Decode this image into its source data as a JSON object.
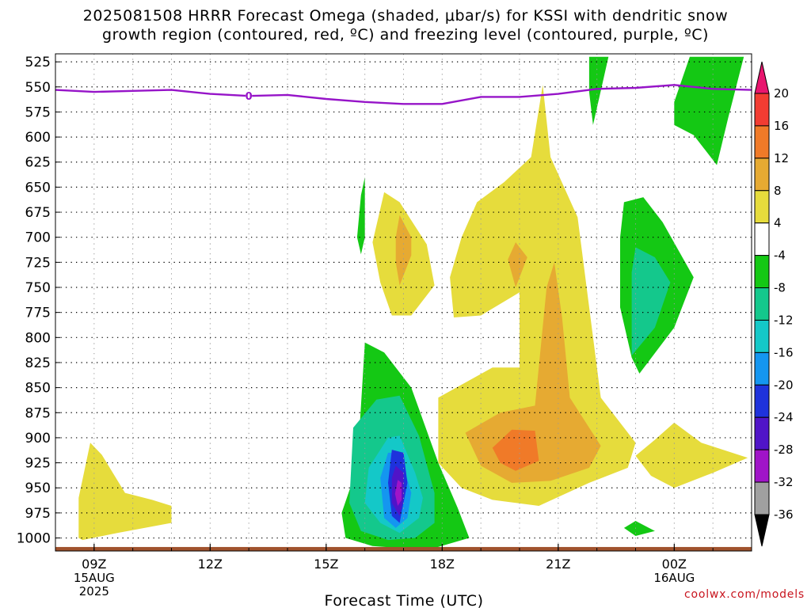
{
  "title": {
    "line1": "2025081508 HRRR Forecast Omega (shaded, μbar/s) for KSSI with dendritic snow",
    "line2": "growth region (contoured, red, ºC) and freezing level (contoured, purple, ºC)"
  },
  "credit": "coolwx.com/models",
  "chart_data": {
    "type": "time-height",
    "title": "2025081508 HRRR Forecast Omega (shaded, μbar/s) for KSSI with dendritic snow growth region (contoured, red, ºC) and freezing level (contoured, purple, ºC)",
    "xlabel": "Forecast Time (UTC)",
    "ylabel": "",
    "x_ticks": [
      {
        "label": "09Z",
        "sub": [
          "15AUG",
          "2025"
        ],
        "hour": 9
      },
      {
        "label": "12Z",
        "sub": [],
        "hour": 12
      },
      {
        "label": "15Z",
        "sub": [],
        "hour": 15
      },
      {
        "label": "18Z",
        "sub": [],
        "hour": 18
      },
      {
        "label": "21Z",
        "sub": [],
        "hour": 21
      },
      {
        "label": "00Z",
        "sub": [
          "16AUG"
        ],
        "hour": 24
      }
    ],
    "xlim_hours": [
      8,
      26
    ],
    "y_ticks": [
      "525",
      "550",
      "575",
      "600",
      "625",
      "650",
      "675",
      "700",
      "725",
      "750",
      "775",
      "800",
      "825",
      "850",
      "875",
      "900",
      "925",
      "950",
      "975",
      "1000"
    ],
    "ylim_hPa": [
      517,
      1013
    ],
    "grid": true,
    "colorbar": {
      "labels": [
        "20",
        "16",
        "12",
        "8",
        "4",
        "-4",
        "-8",
        "-12",
        "-16",
        "-20",
        "-24",
        "-28",
        "-32",
        "-36"
      ],
      "colors": [
        "#e8156e",
        "#f23c32",
        "#f07a28",
        "#e6aa32",
        "#e6dc3c",
        "#ffffff",
        "#14c814",
        "#14c88c",
        "#14c8c8",
        "#1496f0",
        "#1e32dc",
        "#5014c8",
        "#a014c8",
        "#a0a0a0",
        "#000000"
      ],
      "levels": [
        20,
        16,
        12,
        8,
        4,
        -4,
        -8,
        -12,
        -16,
        -20,
        -24,
        -28,
        -32,
        -36
      ]
    },
    "freezing_level": {
      "color": "#9614c8",
      "label": "0",
      "points": [
        [
          8.0,
          553
        ],
        [
          9.0,
          555
        ],
        [
          10.0,
          554
        ],
        [
          11.0,
          553
        ],
        [
          12.0,
          557
        ],
        [
          13.0,
          559
        ],
        [
          14.0,
          558
        ],
        [
          15.0,
          562
        ],
        [
          16.0,
          565
        ],
        [
          17.0,
          567
        ],
        [
          18.0,
          567
        ],
        [
          19.0,
          560
        ],
        [
          20.0,
          560
        ],
        [
          21.0,
          557
        ],
        [
          22.0,
          552
        ],
        [
          23.0,
          551
        ],
        [
          24.0,
          548
        ],
        [
          25.0,
          552
        ],
        [
          26.0,
          553
        ]
      ]
    },
    "omega_regions": [
      {
        "level": 4,
        "color": "#e6dc3c",
        "points": [
          [
            8.6,
            1000
          ],
          [
            8.6,
            960
          ],
          [
            8.9,
            905
          ],
          [
            9.2,
            917
          ],
          [
            9.8,
            955
          ],
          [
            10.5,
            962
          ],
          [
            11.0,
            968
          ],
          [
            11.0,
            985
          ],
          [
            10.3,
            990
          ],
          [
            9.6,
            995
          ],
          [
            8.7,
            1002
          ]
        ]
      },
      {
        "level": 4,
        "color": "#e6dc3c",
        "points": [
          [
            18.9,
            665
          ],
          [
            19.6,
            645
          ],
          [
            20.3,
            620
          ],
          [
            20.6,
            548
          ],
          [
            20.8,
            620
          ],
          [
            21.5,
            680
          ],
          [
            22.1,
            860
          ],
          [
            23.0,
            905
          ],
          [
            22.8,
            930
          ],
          [
            21.8,
            945
          ],
          [
            20.5,
            968
          ],
          [
            19.3,
            962
          ],
          [
            18.5,
            950
          ],
          [
            17.9,
            925
          ],
          [
            17.9,
            860
          ],
          [
            19.3,
            830
          ],
          [
            20.0,
            830
          ],
          [
            20.0,
            755
          ],
          [
            19.0,
            778
          ],
          [
            18.3,
            780
          ],
          [
            18.2,
            740
          ],
          [
            18.5,
            700
          ]
        ]
      },
      {
        "level": 4,
        "color": "#e6dc3c",
        "points": [
          [
            16.5,
            655
          ],
          [
            16.9,
            665
          ],
          [
            17.6,
            707
          ],
          [
            17.8,
            748
          ],
          [
            17.2,
            778
          ],
          [
            16.7,
            778
          ],
          [
            16.4,
            745
          ],
          [
            16.2,
            705
          ]
        ]
      },
      {
        "level": 4,
        "color": "#e6dc3c",
        "points": [
          [
            23.0,
            918
          ],
          [
            23.5,
            902
          ],
          [
            24.0,
            885
          ],
          [
            24.7,
            905
          ],
          [
            25.9,
            920
          ],
          [
            25.0,
            935
          ],
          [
            24.0,
            950
          ],
          [
            23.4,
            938
          ]
        ]
      },
      {
        "level": 8,
        "color": "#e6aa32",
        "points": [
          [
            18.6,
            895
          ],
          [
            19.5,
            875
          ],
          [
            20.4,
            868
          ],
          [
            20.7,
            750
          ],
          [
            20.9,
            725
          ],
          [
            21.1,
            780
          ],
          [
            21.3,
            860
          ],
          [
            22.1,
            908
          ],
          [
            21.8,
            930
          ],
          [
            20.8,
            943
          ],
          [
            19.8,
            945
          ],
          [
            19.0,
            928
          ]
        ]
      },
      {
        "level": 8,
        "color": "#e6aa32",
        "points": [
          [
            16.9,
            678
          ],
          [
            17.2,
            700
          ],
          [
            17.2,
            718
          ],
          [
            16.9,
            748
          ],
          [
            16.8,
            725
          ],
          [
            16.8,
            700
          ]
        ]
      },
      {
        "level": 8,
        "color": "#e6aa32",
        "points": [
          [
            19.7,
            722
          ],
          [
            19.9,
            705
          ],
          [
            20.2,
            720
          ],
          [
            19.9,
            750
          ]
        ]
      },
      {
        "level": 12,
        "color": "#f07a28",
        "points": [
          [
            19.3,
            910
          ],
          [
            19.8,
            892
          ],
          [
            20.4,
            893
          ],
          [
            20.5,
            923
          ],
          [
            19.9,
            933
          ],
          [
            19.5,
            925
          ]
        ]
      },
      {
        "level": -4,
        "color": "#14c814",
        "points": [
          [
            15.9,
            868
          ],
          [
            16.0,
            805
          ],
          [
            16.5,
            815
          ],
          [
            17.2,
            850
          ],
          [
            17.9,
            925
          ],
          [
            18.4,
            970
          ],
          [
            18.7,
            1000
          ],
          [
            17.8,
            1010
          ],
          [
            16.9,
            1010
          ],
          [
            16.2,
            1008
          ],
          [
            15.5,
            1000
          ],
          [
            15.4,
            975
          ],
          [
            15.8,
            930
          ]
        ]
      },
      {
        "level": -4,
        "color": "#14c814",
        "points": [
          [
            15.9,
            658
          ],
          [
            16.0,
            640
          ],
          [
            16.0,
            700
          ],
          [
            15.9,
            717
          ],
          [
            15.8,
            700
          ]
        ]
      },
      {
        "level": -4,
        "color": "#14c814",
        "points": [
          [
            21.8,
            520
          ],
          [
            22.3,
            520
          ],
          [
            21.9,
            588
          ],
          [
            21.8,
            555
          ]
        ]
      },
      {
        "level": -4,
        "color": "#14c814",
        "points": [
          [
            24.4,
            520
          ],
          [
            25.8,
            520
          ],
          [
            25.4,
            580
          ],
          [
            25.1,
            628
          ],
          [
            24.5,
            598
          ],
          [
            24.0,
            588
          ],
          [
            24.0,
            565
          ]
        ]
      },
      {
        "level": -4,
        "color": "#14c814",
        "points": [
          [
            22.7,
            665
          ],
          [
            23.2,
            660
          ],
          [
            23.7,
            685
          ],
          [
            24.5,
            740
          ],
          [
            24.0,
            790
          ],
          [
            23.1,
            836
          ],
          [
            22.9,
            820
          ],
          [
            22.6,
            770
          ],
          [
            22.6,
            700
          ]
        ]
      },
      {
        "level": -4,
        "color": "#14c814",
        "points": [
          [
            22.7,
            990
          ],
          [
            23.0,
            983
          ],
          [
            23.5,
            993
          ],
          [
            23.0,
            998
          ]
        ]
      },
      {
        "level": -8,
        "color": "#14c88c",
        "points": [
          [
            15.7,
            890
          ],
          [
            16.3,
            862
          ],
          [
            16.9,
            858
          ],
          [
            17.4,
            898
          ],
          [
            17.8,
            955
          ],
          [
            17.8,
            985
          ],
          [
            17.3,
            1000
          ],
          [
            16.6,
            1002
          ],
          [
            15.9,
            993
          ],
          [
            15.6,
            965
          ]
        ]
      },
      {
        "level": -8,
        "color": "#14c88c",
        "points": [
          [
            22.9,
            735
          ],
          [
            23.0,
            710
          ],
          [
            23.5,
            720
          ],
          [
            23.9,
            745
          ],
          [
            23.5,
            790
          ],
          [
            22.9,
            818
          ]
        ]
      },
      {
        "level": -12,
        "color": "#14c8c8",
        "points": [
          [
            16.1,
            930
          ],
          [
            16.6,
            900
          ],
          [
            16.9,
            898
          ],
          [
            17.3,
            935
          ],
          [
            17.5,
            960
          ],
          [
            17.4,
            980
          ],
          [
            16.9,
            995
          ],
          [
            16.4,
            985
          ],
          [
            16.0,
            965
          ]
        ]
      },
      {
        "level": -16,
        "color": "#1496f0",
        "points": [
          [
            16.4,
            940
          ],
          [
            16.6,
            915
          ],
          [
            16.9,
            915
          ],
          [
            17.2,
            955
          ],
          [
            17.1,
            980
          ],
          [
            16.8,
            990
          ],
          [
            16.5,
            980
          ]
        ]
      },
      {
        "level": -20,
        "color": "#1e32dc",
        "points": [
          [
            16.7,
            912
          ],
          [
            17.0,
            915
          ],
          [
            17.1,
            945
          ],
          [
            16.9,
            985
          ],
          [
            16.7,
            978
          ],
          [
            16.6,
            945
          ]
        ]
      },
      {
        "level": -24,
        "color": "#5014c8",
        "points": [
          [
            16.8,
            928
          ],
          [
            17.0,
            935
          ],
          [
            17.0,
            960
          ],
          [
            16.9,
            978
          ],
          [
            16.7,
            965
          ],
          [
            16.7,
            940
          ]
        ]
      },
      {
        "level": -28,
        "color": "#a014c8",
        "points": [
          [
            16.85,
            942
          ],
          [
            16.95,
            945
          ],
          [
            16.95,
            962
          ],
          [
            16.85,
            968
          ],
          [
            16.78,
            956
          ]
        ]
      }
    ],
    "ground": {
      "color": "#a0522d",
      "from_hPa": 1009,
      "to_hPa": 1013
    }
  }
}
